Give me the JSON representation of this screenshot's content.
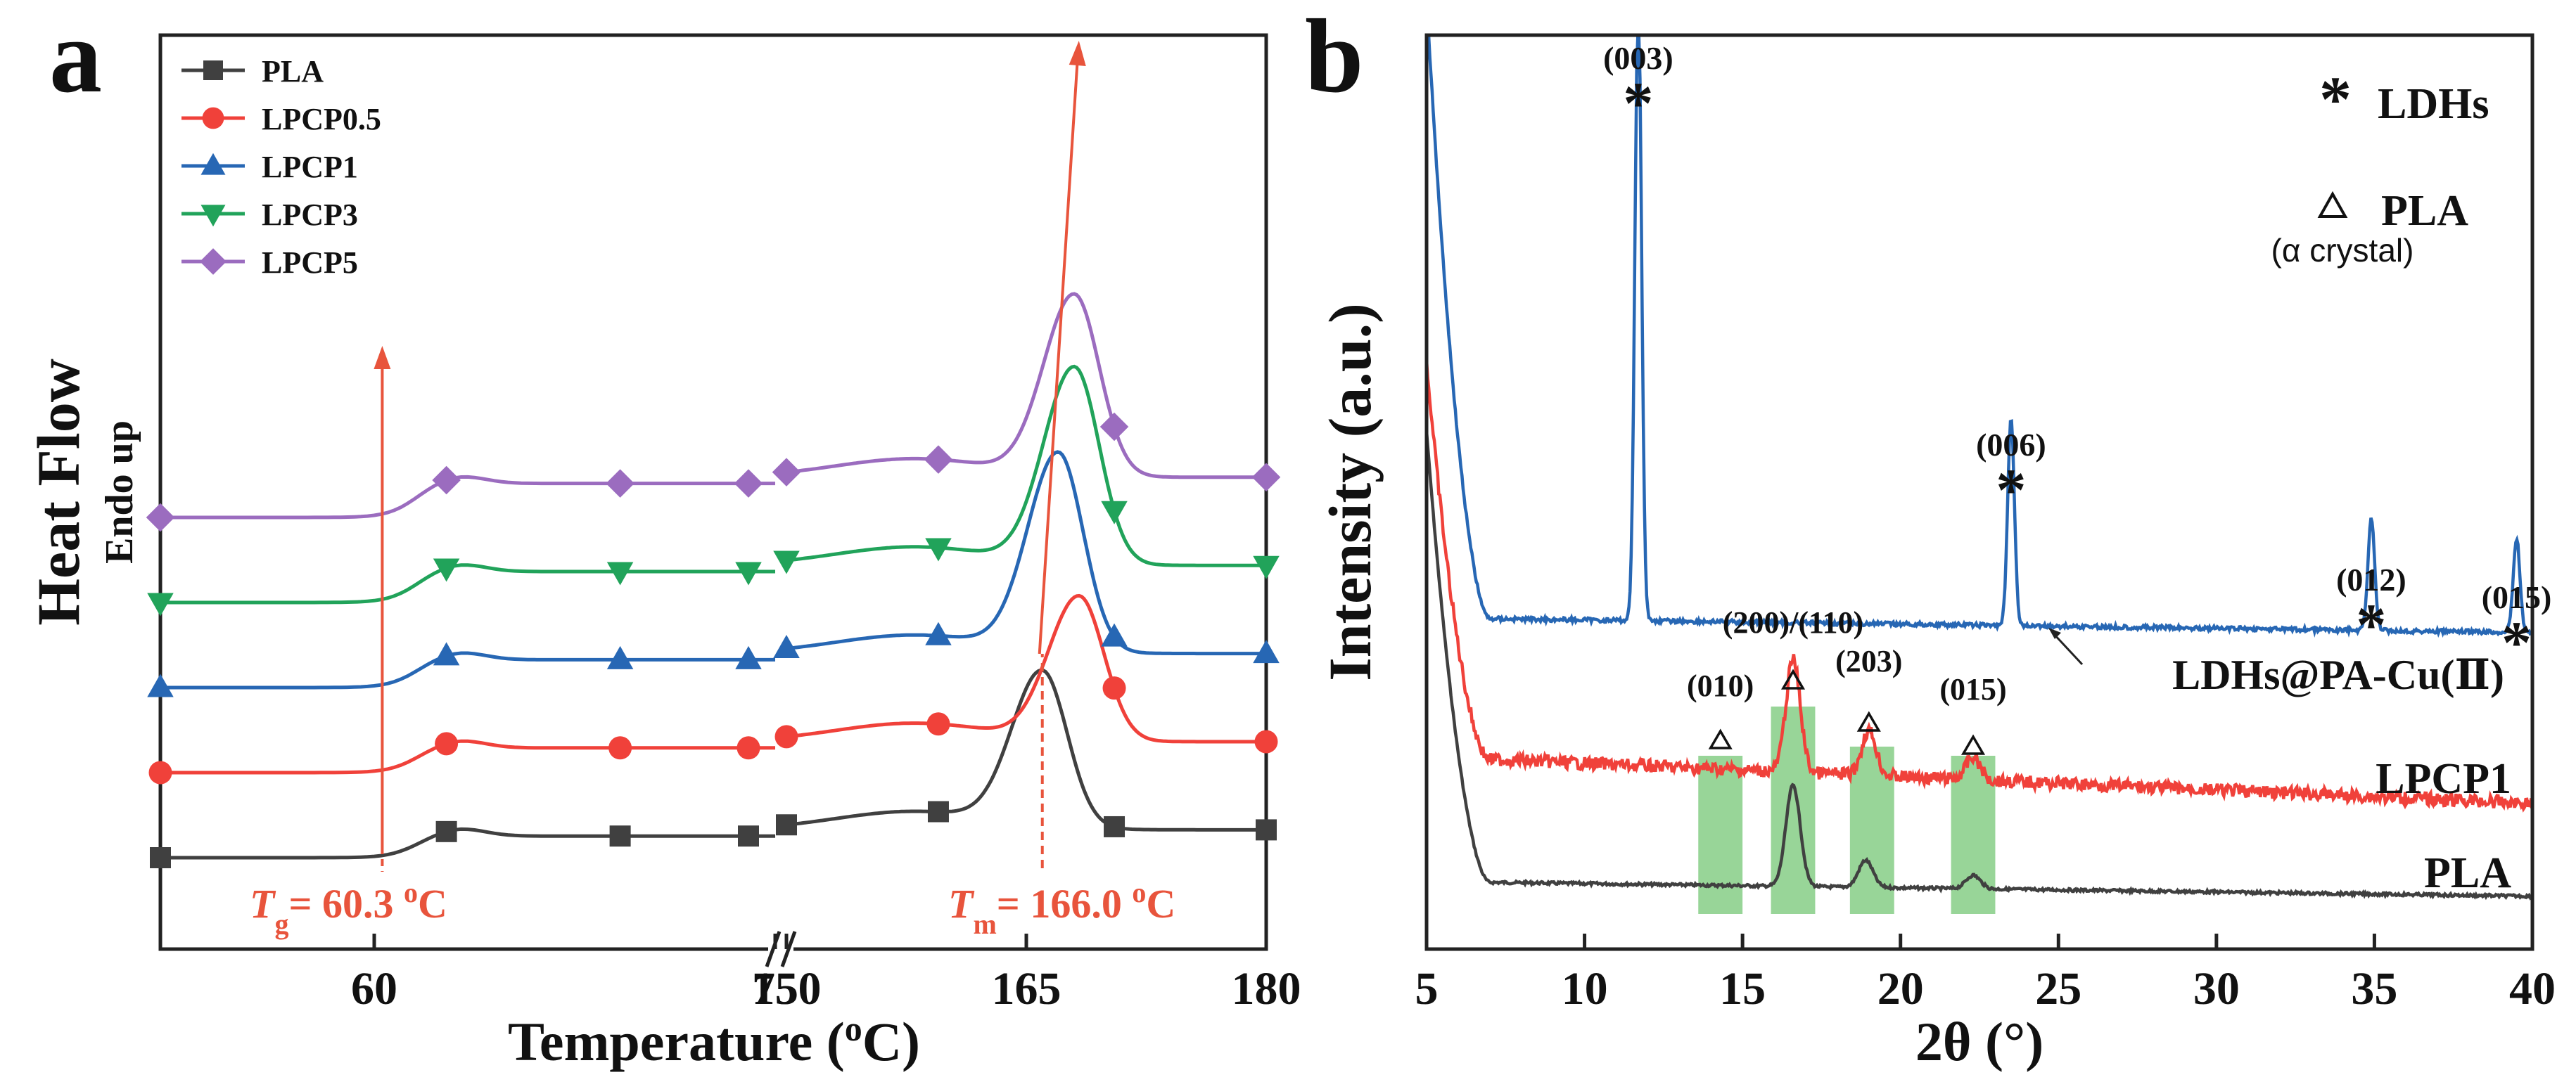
{
  "chart_data": [
    {
      "panel_label": "a",
      "type": "line",
      "xlabel_text": "Temperature (",
      "xlabel_sup": "o",
      "xlabel_end": "C)",
      "ylabel": "Heat Flow",
      "ylabel2": "Endo up",
      "axis_break": true,
      "xrange_left": [
        52,
        75
      ],
      "xrange_right": [
        150,
        180
      ],
      "left_ticks": [
        "60",
        "75"
      ],
      "right_ticks": [
        "150",
        "165",
        "180"
      ],
      "legend_position": "top-left",
      "series": [
        {
          "name": "PLA",
          "color": "#404040",
          "marker": "square",
          "peak_x": 166.0,
          "peak_height": 1.0,
          "tg_step": 0.14,
          "offset": 0.0
        },
        {
          "name": "LPCP0.5",
          "color": "#f0413a",
          "marker": "circle",
          "peak_x": 168.3,
          "peak_height": 0.93,
          "tg_step": 0.16,
          "offset": 0.55
        },
        {
          "name": "LPCP1",
          "color": "#2767b4",
          "marker": "triangle-up",
          "peak_x": 167.0,
          "peak_height": 1.28,
          "tg_step": 0.18,
          "offset": 1.1
        },
        {
          "name": "LPCP3",
          "color": "#21a35a",
          "marker": "triangle-down",
          "peak_x": 168.0,
          "peak_height": 1.27,
          "tg_step": 0.2,
          "offset": 1.65
        },
        {
          "name": "LPCP5",
          "color": "#9b6cbf",
          "marker": "diamond",
          "peak_x": 168.0,
          "peak_height": 1.17,
          "tg_step": 0.22,
          "offset": 2.2
        }
      ],
      "annotations": [
        {
          "label_main": "T",
          "label_sub": "g",
          "label_text": "= 60.3 ",
          "label_sup": "o",
          "label_end": "C",
          "x": 60.3
        },
        {
          "label_main": "T",
          "label_sub": "m",
          "label_text": "= 166.0 ",
          "label_sup": "o",
          "label_end": "C",
          "x": 166.0
        }
      ],
      "annotation_color": "#e8543c"
    },
    {
      "panel_label": "b",
      "type": "line",
      "xlabel": "2θ (°)",
      "ylabel": "Intensity (a.u.)",
      "xlim": [
        5,
        40
      ],
      "xticks": [
        "5",
        "10",
        "15",
        "20",
        "25",
        "30",
        "35",
        "40"
      ],
      "series": [
        {
          "name": "PLA",
          "color": "#404040",
          "peaks": [
            {
              "x": 16.6,
              "h": 0.45
            },
            {
              "x": 18.9,
              "h": 0.12
            },
            {
              "x": 22.3,
              "h": 0.06
            }
          ]
        },
        {
          "name": "LPCP1",
          "color": "#f0413a",
          "peaks": [
            {
              "x": 16.6,
              "h": 0.5
            },
            {
              "x": 19.0,
              "h": 0.2
            },
            {
              "x": 22.3,
              "h": 0.1
            }
          ]
        },
        {
          "name": "LDHs@PA-Cu(Ⅱ)",
          "color": "#2767b4",
          "peaks": [
            {
              "x": 11.7,
              "h": 2.75
            },
            {
              "x": 23.5,
              "h": 0.92
            },
            {
              "x": 34.9,
              "h": 0.5
            },
            {
              "x": 39.5,
              "h": 0.42
            }
          ]
        }
      ],
      "ldh_peak_labels": [
        {
          "label": "(003)",
          "x": 11.7
        },
        {
          "label": "(006)",
          "x": 23.5
        },
        {
          "label": "(012)",
          "x": 34.9
        },
        {
          "label": "(015)",
          "x": 39.5
        }
      ],
      "pla_peak_labels": [
        {
          "label": "(010)",
          "x": 14.3
        },
        {
          "label": "(200)/(110)",
          "x": 16.6
        },
        {
          "label": "(203)",
          "x": 19.0
        },
        {
          "label": "(015)",
          "x": 22.3
        }
      ],
      "highlight_bands": [
        [
          13.6,
          15.0
        ],
        [
          15.9,
          17.3
        ],
        [
          18.4,
          19.8
        ],
        [
          21.6,
          23.0
        ]
      ],
      "band_color": "#7ecb7e",
      "legend": {
        "star_text": "LDHs",
        "triangle_text": "PLA",
        "triangle_note": "(α crystal)"
      },
      "series_labels": {
        "ldh": "LDHs@PA-Cu(Ⅱ)",
        "lpcp1": "LPCP1",
        "pla": "PLA"
      }
    }
  ]
}
